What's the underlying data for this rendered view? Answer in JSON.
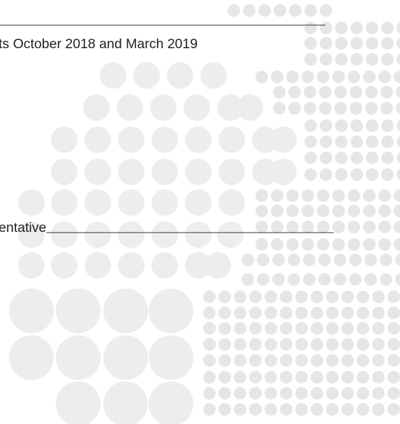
{
  "document": {
    "lines": [
      "ts October 2018 and March 2019",
      "entative"
    ]
  }
}
